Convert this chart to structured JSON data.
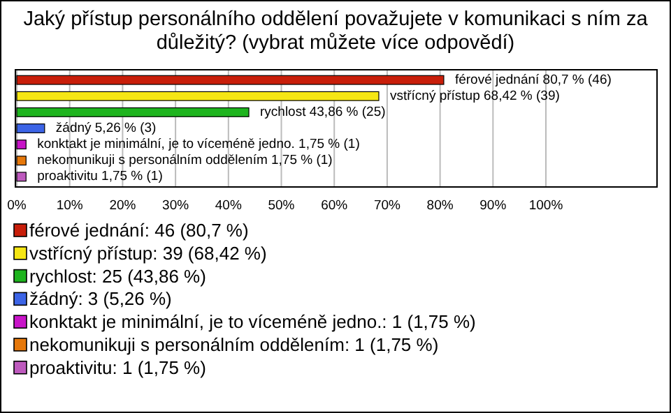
{
  "chart_data": {
    "type": "bar",
    "orientation": "horizontal",
    "title": "Jaký přístup personálního oddělení považujete v komunikaci s ním za důležitý? (vybrat můžete více odpovědí)",
    "categories": [
      null,
      null,
      null,
      null,
      null,
      null,
      null
    ],
    "series": [
      {
        "name": "férové jednání: 46 (80,7 %)",
        "color": "#c81e0a",
        "values": [
          80.7,
          null,
          null,
          null,
          null,
          null,
          null
        ],
        "value_labels": [
          "férové jednání 80,7 % (46)",
          null,
          null,
          null,
          null,
          null,
          null
        ]
      },
      {
        "name": "vstřícný přístup: 39 (68,42 %)",
        "color": "#f5e614",
        "values": [
          null,
          68.42,
          null,
          null,
          null,
          null,
          null
        ],
        "value_labels": [
          null,
          "vstřícný přístup 68,42 % (39)",
          null,
          null,
          null,
          null,
          null
        ]
      },
      {
        "name": "rychlost: 25 (43,86 %)",
        "color": "#1eb41e",
        "values": [
          null,
          null,
          43.86,
          null,
          null,
          null,
          null
        ],
        "value_labels": [
          null,
          null,
          "rychlost 43,86 % (25)",
          null,
          null,
          null,
          null
        ]
      },
      {
        "name": "žádný: 3 (5,26 %)",
        "color": "#3c64e6",
        "values": [
          null,
          null,
          null,
          5.26,
          null,
          null,
          null
        ],
        "value_labels": [
          null,
          null,
          null,
          "žádný 5,26 % (3)",
          null,
          null,
          null
        ]
      },
      {
        "name": "konktakt je minimální, je to víceméně jedno.: 1 (1,75 %)",
        "color": "#c814c8",
        "values": [
          null,
          null,
          null,
          null,
          1.75,
          null,
          null
        ],
        "value_labels": [
          null,
          null,
          null,
          null,
          "konktakt je minimální, je to víceméně jedno. 1,75 % (1)",
          null,
          null
        ]
      },
      {
        "name": "nekomunikuji s personálním oddělením: 1 (1,75 %)",
        "color": "#e6780a",
        "values": [
          null,
          null,
          null,
          null,
          null,
          1.75,
          null
        ],
        "value_labels": [
          null,
          null,
          null,
          null,
          null,
          "nekomunikuji s personálním oddělením 1,75 % (1)",
          null
        ]
      },
      {
        "name": "proaktivitu: 1 (1,75 %)",
        "color": "#be5abe",
        "values": [
          null,
          null,
          null,
          null,
          null,
          null,
          1.75
        ],
        "value_labels": [
          null,
          null,
          null,
          null,
          null,
          null,
          "proaktivitu 1,75 % (1)"
        ]
      }
    ],
    "xlim": [
      0,
      121
    ],
    "xticks": [
      {
        "value": 0,
        "label": "0%"
      },
      {
        "value": 10,
        "label": "10%"
      },
      {
        "value": 20,
        "label": "20%"
      },
      {
        "value": 30,
        "label": "30%"
      },
      {
        "value": 40,
        "label": "40%"
      },
      {
        "value": 50,
        "label": "50%"
      },
      {
        "value": 60,
        "label": "60%"
      },
      {
        "value": 70,
        "label": "70%"
      },
      {
        "value": 80,
        "label": "80%"
      },
      {
        "value": 90,
        "label": "90%"
      },
      {
        "value": 100,
        "label": "100%"
      }
    ],
    "grid": "x",
    "legend": "bottom",
    "tick_labels": "x"
  }
}
